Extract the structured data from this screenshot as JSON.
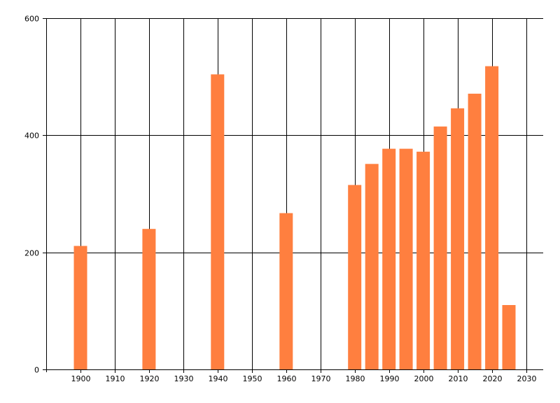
{
  "colors": {
    "bar": "#FF7F3F",
    "grid": "#000000",
    "axis": "#000000",
    "background": "#FFFFFF"
  },
  "chart_data": {
    "type": "bar",
    "title": "",
    "xlabel": "",
    "ylabel": "",
    "grid": true,
    "legend": "none",
    "xlim": [
      1890,
      2035
    ],
    "ylim": [
      0,
      600
    ],
    "x_ticks": [
      1900,
      1910,
      1920,
      1930,
      1940,
      1950,
      1960,
      1970,
      1980,
      1990,
      2000,
      2010,
      2020,
      2030
    ],
    "y_ticks": [
      0,
      200,
      400,
      600
    ],
    "x": [
      1900,
      1920,
      1940,
      1960,
      1980,
      1985,
      1990,
      1995,
      2000,
      2005,
      2010,
      2015,
      2020,
      2025
    ],
    "values": [
      211,
      240,
      504,
      267,
      315,
      351,
      377,
      377,
      372,
      415,
      446,
      471,
      518,
      110
    ]
  }
}
